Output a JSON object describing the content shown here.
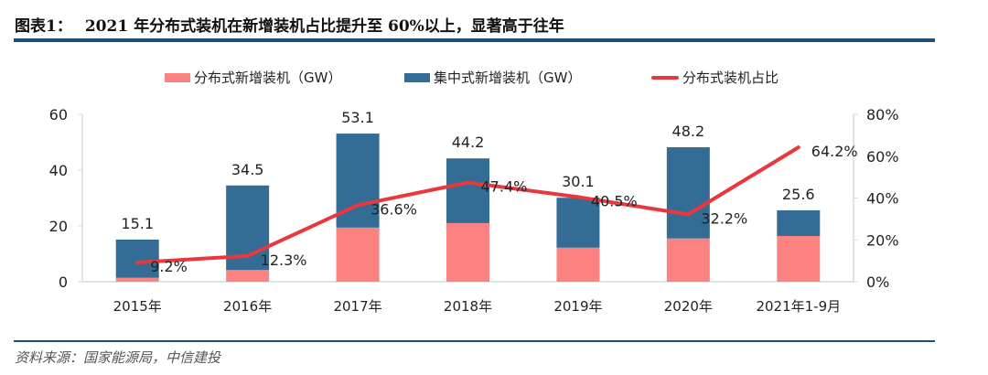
{
  "header": {
    "figure_label": "图表1：",
    "title": "2021 年分布式装机在新增装机占比提升至 60%以上，显著高于往年"
  },
  "footer": {
    "source": "资料来源：国家能源局，中信建投"
  },
  "colors": {
    "distributed": "#fb8281",
    "centralized": "#336d96",
    "share_line": "#e8383d",
    "rule": "#1f4e79"
  },
  "chart_data": {
    "type": "bar",
    "stacked": true,
    "title": "2021 年分布式装机在新增装机占比提升至 60%以上，显著高于往年",
    "categories": [
      "2015年",
      "2016年",
      "2017年",
      "2018年",
      "2019年",
      "2020年",
      "2021年1-9月"
    ],
    "series": [
      {
        "name": "分布式新增装机（GW）",
        "type": "bar",
        "axis": "left",
        "values": [
          1.4,
          4.2,
          19.4,
          21.0,
          12.2,
          15.5,
          16.4
        ]
      },
      {
        "name": "集中式新增装机（GW）",
        "type": "bar",
        "axis": "left",
        "values": [
          13.7,
          30.3,
          33.7,
          23.2,
          17.9,
          32.7,
          9.2
        ]
      },
      {
        "name": "分布式装机占比",
        "type": "line",
        "axis": "right",
        "values": [
          9.2,
          12.3,
          36.6,
          47.4,
          40.5,
          32.2,
          64.2
        ]
      }
    ],
    "total_labels": [
      "15.1",
      "34.5",
      "53.1",
      "44.2",
      "30.1",
      "48.2",
      "25.6"
    ],
    "share_labels": [
      "9.2%",
      "12.3%",
      "36.6%",
      "47.4%",
      "40.5%",
      "32.2%",
      "64.2%"
    ],
    "left_axis": {
      "ylim": [
        0,
        60
      ],
      "ticks": [
        "0",
        "20",
        "40",
        "60"
      ],
      "tick_values": [
        0,
        20,
        40,
        60
      ]
    },
    "right_axis": {
      "ylim": [
        0,
        80
      ],
      "ticks": [
        "0%",
        "20%",
        "40%",
        "60%",
        "80%"
      ],
      "tick_values": [
        0,
        20,
        40,
        60,
        80
      ]
    },
    "xlabel": "",
    "ylabel": "",
    "grid": false,
    "legend_position": "top"
  },
  "legend": [
    {
      "label": "分布式新增装机（GW）",
      "kind": "box"
    },
    {
      "label": "集中式新增装机（GW）",
      "kind": "box"
    },
    {
      "label": "分布式装机占比",
      "kind": "line"
    }
  ]
}
